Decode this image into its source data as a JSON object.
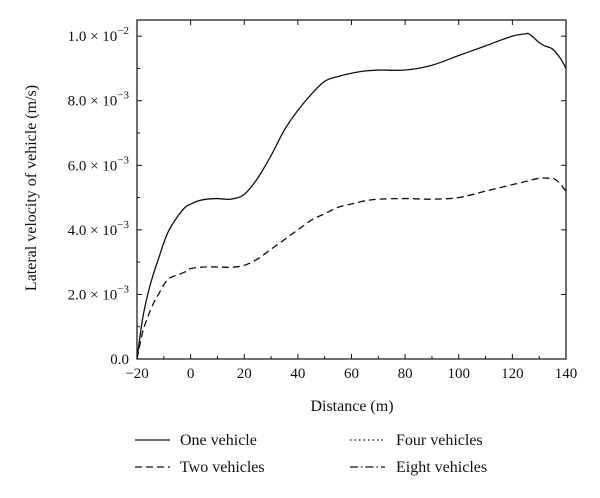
{
  "chart_data": {
    "type": "line",
    "title": "",
    "xlabel": "Distance (m)",
    "ylabel": "Lateral velocity of vehicle (m/s)",
    "xlim": [
      -20,
      140
    ],
    "ylim": [
      0,
      0.0105
    ],
    "grid": false,
    "legend_position": "bottom",
    "x_ticks": [
      {
        "value": -20,
        "label": "−20"
      },
      {
        "value": 0,
        "label": "0"
      },
      {
        "value": 20,
        "label": "20"
      },
      {
        "value": 40,
        "label": "40"
      },
      {
        "value": 60,
        "label": "60"
      },
      {
        "value": 80,
        "label": "80"
      },
      {
        "value": 100,
        "label": "100"
      },
      {
        "value": 120,
        "label": "120"
      },
      {
        "value": 140,
        "label": "140"
      }
    ],
    "y_ticks": [
      {
        "value": 0,
        "label": "0.0",
        "exp": ""
      },
      {
        "value": 0.002,
        "label": "2.0 × 10",
        "exp": "−3"
      },
      {
        "value": 0.004,
        "label": "4.0 × 10",
        "exp": "−3"
      },
      {
        "value": 0.006,
        "label": "6.0 × 10",
        "exp": "−3"
      },
      {
        "value": 0.008,
        "label": "8.0 × 10",
        "exp": "−3"
      },
      {
        "value": 0.01,
        "label": "1.0 × 10",
        "exp": "−2"
      }
    ],
    "series": [
      {
        "name": "One vehicle",
        "dash": "solid",
        "x": [
          -20,
          -18,
          -16,
          -14,
          -12,
          -10,
          -8,
          -5,
          -2,
          0,
          3,
          6,
          10,
          15,
          20,
          25,
          30,
          35,
          40,
          45,
          50,
          55,
          60,
          65,
          70,
          80,
          90,
          100,
          110,
          120,
          125,
          126,
          128,
          130,
          132,
          135,
          138,
          140
        ],
        "y": [
          0.0,
          0.0012,
          0.002,
          0.0026,
          0.0031,
          0.0036,
          0.004,
          0.0044,
          0.0047,
          0.0048,
          0.0049,
          0.00495,
          0.00497,
          0.00495,
          0.0051,
          0.0056,
          0.0063,
          0.0071,
          0.0077,
          0.0082,
          0.0086,
          0.00875,
          0.00885,
          0.00892,
          0.00895,
          0.00895,
          0.0091,
          0.0094,
          0.0097,
          0.01,
          0.01007,
          0.01008,
          0.00995,
          0.0098,
          0.0097,
          0.0096,
          0.0093,
          0.009
        ]
      },
      {
        "name": "Two vehicles",
        "dash": "dashed",
        "x": [
          -20,
          -18,
          -16,
          -14,
          -12,
          -10,
          -8,
          -5,
          -2,
          0,
          5,
          10,
          15,
          20,
          25,
          30,
          35,
          40,
          45,
          50,
          55,
          60,
          65,
          70,
          80,
          90,
          100,
          110,
          120,
          125,
          130,
          133,
          135,
          137,
          140
        ],
        "y": [
          0.0,
          0.0008,
          0.0013,
          0.0017,
          0.002,
          0.0023,
          0.0025,
          0.0026,
          0.0027,
          0.0028,
          0.00285,
          0.00285,
          0.00284,
          0.0029,
          0.0031,
          0.0034,
          0.0037,
          0.004,
          0.0043,
          0.0045,
          0.0047,
          0.0048,
          0.0049,
          0.00495,
          0.00497,
          0.00495,
          0.005,
          0.0052,
          0.0054,
          0.0055,
          0.0056,
          0.0056,
          0.0056,
          0.0055,
          0.0052
        ]
      },
      {
        "name": "Four vehicles",
        "dash": "dotted",
        "x": [],
        "y": []
      },
      {
        "name": "Eight vehicles",
        "dash": "dashdot",
        "x": [],
        "y": []
      }
    ]
  }
}
